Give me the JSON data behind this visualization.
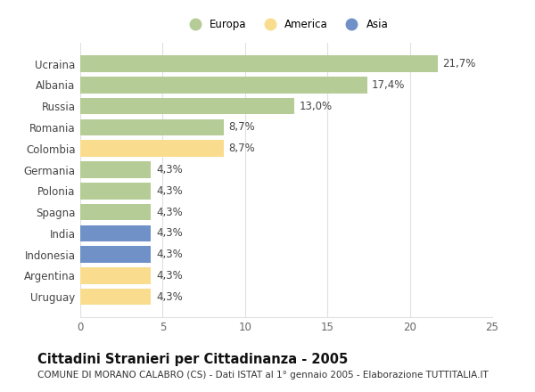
{
  "categories": [
    "Ucraina",
    "Albania",
    "Russia",
    "Romania",
    "Colombia",
    "Germania",
    "Polonia",
    "Spagna",
    "India",
    "Indonesia",
    "Argentina",
    "Uruguay"
  ],
  "values": [
    21.7,
    17.4,
    13.0,
    8.7,
    8.7,
    4.3,
    4.3,
    4.3,
    4.3,
    4.3,
    4.3,
    4.3
  ],
  "labels": [
    "21,7%",
    "17,4%",
    "13,0%",
    "8,7%",
    "8,7%",
    "4,3%",
    "4,3%",
    "4,3%",
    "4,3%",
    "4,3%",
    "4,3%",
    "4,3%"
  ],
  "colors": [
    "#b5cc96",
    "#b5cc96",
    "#b5cc96",
    "#b5cc96",
    "#f9dc8e",
    "#b5cc96",
    "#b5cc96",
    "#b5cc96",
    "#7090c8",
    "#7090c8",
    "#f9dc8e",
    "#f9dc8e"
  ],
  "legend": [
    {
      "label": "Europa",
      "color": "#b5cc96"
    },
    {
      "label": "America",
      "color": "#f9dc8e"
    },
    {
      "label": "Asia",
      "color": "#7090c8"
    }
  ],
  "xlim": [
    0,
    25
  ],
  "xticks": [
    0,
    5,
    10,
    15,
    20,
    25
  ],
  "title": "Cittadini Stranieri per Cittadinanza - 2005",
  "subtitle": "COMUNE DI MORANO CALABRO (CS) - Dati ISTAT al 1° gennaio 2005 - Elaborazione TUTTITALIA.IT",
  "background_color": "#ffffff",
  "grid_color": "#e0e0e0",
  "bar_height": 0.78,
  "label_fontsize": 8.5,
  "tick_fontsize": 8.5,
  "title_fontsize": 10.5,
  "subtitle_fontsize": 7.5
}
